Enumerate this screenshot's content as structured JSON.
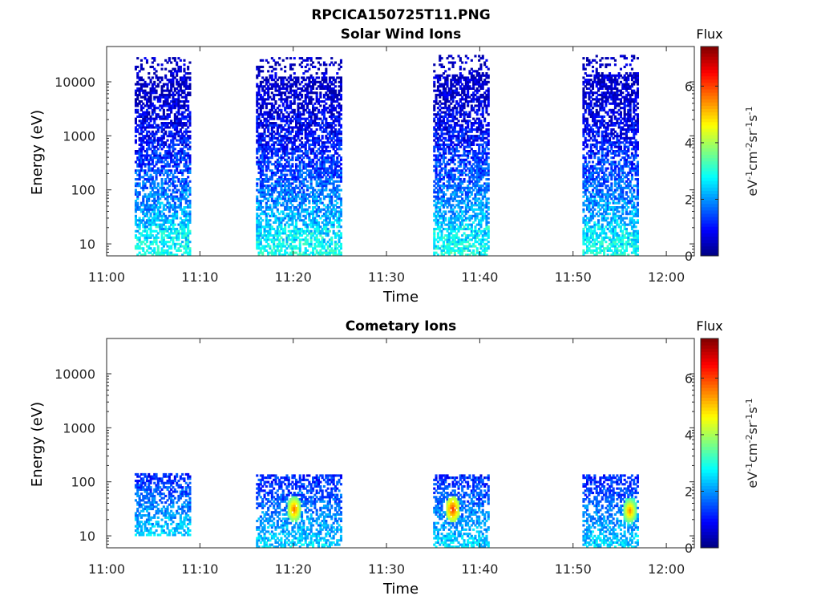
{
  "figure": {
    "title": "RPCICA150725T11.PNG"
  },
  "colorbar": {
    "label": "Flux",
    "ticks": [
      "0",
      "2",
      "4",
      "6"
    ],
    "unit_label_parts": [
      "eV",
      "-1",
      "cm",
      "-2",
      "sr",
      "-1",
      "s",
      "-1"
    ]
  },
  "chart_data": [
    {
      "type": "heatmap",
      "title": "Solar Wind Ions",
      "xlabel": "Time",
      "ylabel": "Energy (eV)",
      "x_ticks": [
        "11:00",
        "11:10",
        "11:20",
        "11:30",
        "11:40",
        "11:50",
        "12:00"
      ],
      "y_ticks": [
        "10",
        "100",
        "1000",
        "10000"
      ],
      "y_scale": "log",
      "ylim": [
        6,
        45000
      ],
      "xlim": [
        "11:00",
        "12:03"
      ],
      "colorbar_range": [
        0,
        7.4
      ],
      "colormap": "jet",
      "bursts": [
        {
          "start": "11:03",
          "end": "11:09",
          "energy_min": 6,
          "energy_max": 28000,
          "peak_flux": 3.2
        },
        {
          "start": "11:16",
          "end": "11:25",
          "energy_min": 6,
          "energy_max": 28000,
          "peak_flux": 3.3
        },
        {
          "start": "11:35",
          "end": "11:41",
          "energy_min": 6,
          "energy_max": 32000,
          "peak_flux": 4.2
        },
        {
          "start": "11:51",
          "end": "11:57",
          "energy_min": 6,
          "energy_max": 32000,
          "peak_flux": 3.2
        }
      ]
    },
    {
      "type": "heatmap",
      "title": "Cometary Ions",
      "xlabel": "Time",
      "ylabel": "Energy (eV)",
      "x_ticks": [
        "11:00",
        "11:10",
        "11:20",
        "11:30",
        "11:40",
        "11:50",
        "12:00"
      ],
      "y_ticks": [
        "10",
        "100",
        "1000",
        "10000"
      ],
      "y_scale": "log",
      "ylim": [
        6,
        45000
      ],
      "xlim": [
        "11:00",
        "12:03"
      ],
      "colorbar_range": [
        0,
        7.4
      ],
      "colormap": "jet",
      "bursts": [
        {
          "start": "11:03",
          "end": "11:09",
          "energy_min": 10,
          "energy_max": 140,
          "peak_flux": 2.8
        },
        {
          "start": "11:16",
          "end": "11:25",
          "energy_min": 6,
          "energy_max": 140,
          "peak_flux": 5.8
        },
        {
          "start": "11:35",
          "end": "11:41",
          "energy_min": 6,
          "energy_max": 140,
          "peak_flux": 6.2
        },
        {
          "start": "11:51",
          "end": "11:57",
          "energy_min": 6,
          "energy_max": 140,
          "peak_flux": 5.6
        }
      ],
      "hot_spots": [
        {
          "time": "11:20",
          "energy": 30,
          "flux": 5.8
        },
        {
          "time": "11:37",
          "energy": 30,
          "flux": 6.2
        },
        {
          "time": "11:56",
          "energy": 28,
          "flux": 5.6
        }
      ]
    }
  ]
}
